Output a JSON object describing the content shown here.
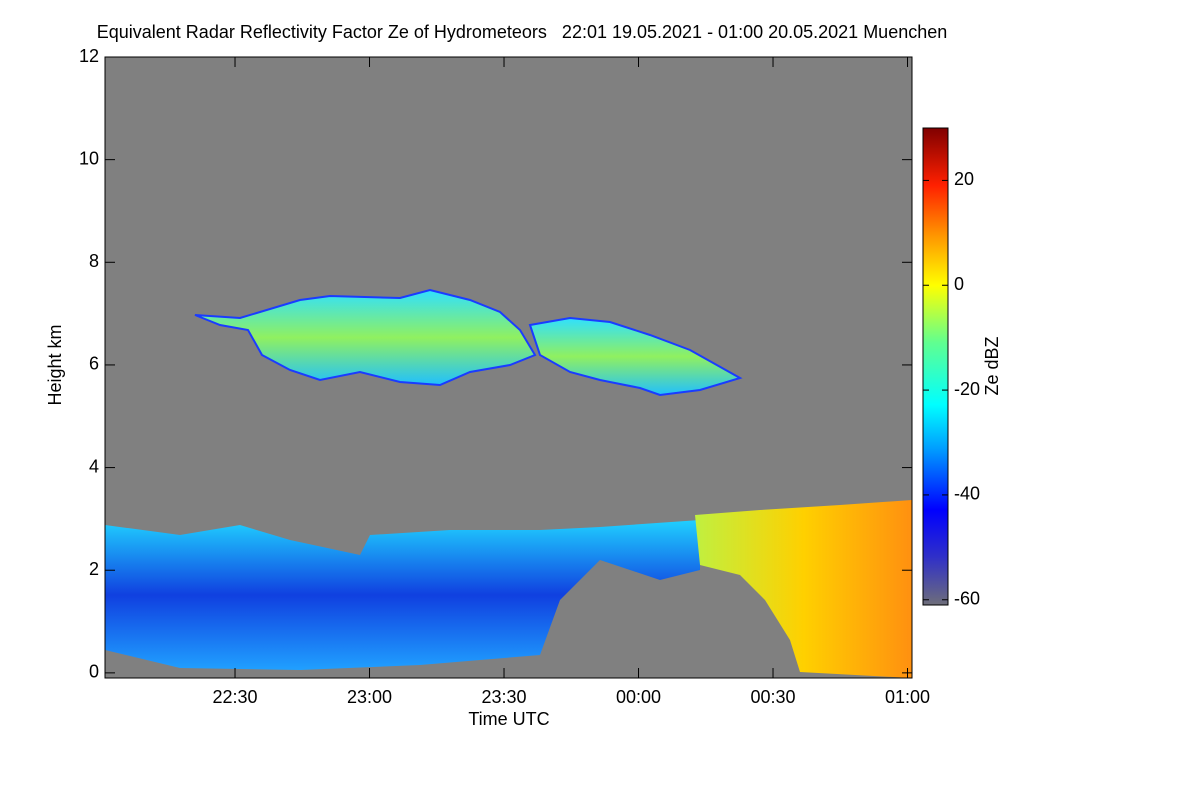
{
  "chart_data": {
    "type": "heatmap",
    "title": "Equivalent Radar Reflectivity Factor Ze of Hydrometeors   22:01 19.05.2021 - 01:00 20.05.2021 Muenchen",
    "x_label": "Time UTC",
    "y_label": "Height km",
    "xlim": [
      1,
      181
    ],
    "xticks": [
      {
        "value": 30,
        "label": "22:30"
      },
      {
        "value": 60,
        "label": "23:00"
      },
      {
        "value": 90,
        "label": "23:30"
      },
      {
        "value": 120,
        "label": "00:00"
      },
      {
        "value": 150,
        "label": "00:30"
      },
      {
        "value": 180,
        "label": "01:00"
      }
    ],
    "ylim": [
      -0.1,
      12
    ],
    "yticks": [
      0,
      2,
      4,
      6,
      8,
      10,
      12
    ],
    "colorbar_label": "Ze dBZ",
    "clim": [
      -61,
      30
    ],
    "cticks": [
      -60,
      -40,
      -20,
      0,
      20
    ]
  }
}
